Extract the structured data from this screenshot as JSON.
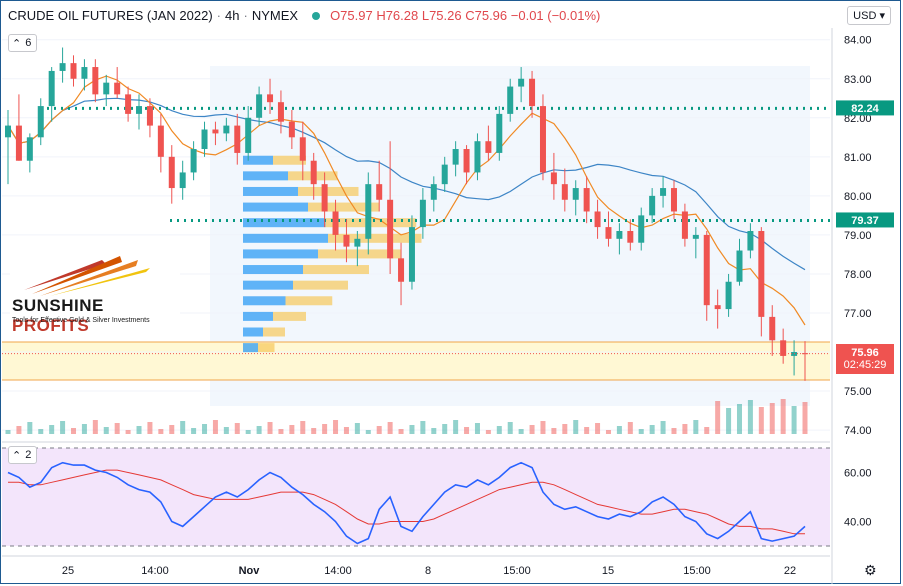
{
  "header": {
    "symbol": "CRUDE OIL FUTURES (JAN 2022)",
    "interval": "4h",
    "exchange": "NYMEX",
    "ohlc": "O75.97 H76.28 L75.26 C75.96 −0.01 (−0.01%)"
  },
  "currency": "USD",
  "main_indicator_count": "6",
  "sub_indicator_count": "2",
  "price_axis": [
    "84.00",
    "83.00",
    "82.00",
    "81.00",
    "80.00",
    "79.00",
    "78.00",
    "77.00",
    "76.00",
    "75.00",
    "74.00"
  ],
  "rsi_axis": [
    "60.00",
    "40.00"
  ],
  "time_axis": [
    "25",
    "14:00",
    "Nov",
    "14:00",
    "8",
    "15:00",
    "15",
    "15:00",
    "22"
  ],
  "tags": {
    "level_high": "82.24",
    "level_mid": "79.37",
    "last_price": "75.96",
    "countdown": "02:45:29"
  },
  "logo": {
    "brand_a": "SUNSHINE ",
    "brand_b": "PROFITS",
    "tagline": "Tools for Effective Gold & Silver Investments"
  },
  "colors": {
    "up": "#26a69a",
    "down": "#ef5350",
    "level": "#089981",
    "last": "#ef5350",
    "rsi": "#2962ff",
    "rsi_ma": "#e53935"
  },
  "chart_data": {
    "type": "candlestick",
    "ylim": [
      73.9,
      84.3
    ],
    "ohlc": [
      [
        81.5,
        82.2,
        80.3,
        81.8
      ],
      [
        81.8,
        82.6,
        80.9,
        80.9
      ],
      [
        80.9,
        81.6,
        80.6,
        81.5
      ],
      [
        81.5,
        82.5,
        81.3,
        82.3
      ],
      [
        82.3,
        83.3,
        81.9,
        83.2
      ],
      [
        83.2,
        83.8,
        82.9,
        83.4
      ],
      [
        83.4,
        83.6,
        82.8,
        83.0
      ],
      [
        83.0,
        83.5,
        82.7,
        83.3
      ],
      [
        83.3,
        83.5,
        82.4,
        82.6
      ],
      [
        82.6,
        83.1,
        82.3,
        82.9
      ],
      [
        82.9,
        83.3,
        82.5,
        82.6
      ],
      [
        82.6,
        82.8,
        81.9,
        82.1
      ],
      [
        82.1,
        82.6,
        81.7,
        82.3
      ],
      [
        82.3,
        82.5,
        81.5,
        81.8
      ],
      [
        81.8,
        82.1,
        80.6,
        81.0
      ],
      [
        81.0,
        81.3,
        79.8,
        80.2
      ],
      [
        80.2,
        80.9,
        79.9,
        80.6
      ],
      [
        80.6,
        81.4,
        80.4,
        81.2
      ],
      [
        81.2,
        81.9,
        81.0,
        81.7
      ],
      [
        81.7,
        81.9,
        81.3,
        81.6
      ],
      [
        81.6,
        82.0,
        81.4,
        81.8
      ],
      [
        81.8,
        82.1,
        80.8,
        81.1
      ],
      [
        81.1,
        82.3,
        80.9,
        82.0
      ],
      [
        82.0,
        82.8,
        81.8,
        82.6
      ],
      [
        82.6,
        83.0,
        82.1,
        82.4
      ],
      [
        82.4,
        82.7,
        81.6,
        81.9
      ],
      [
        81.9,
        82.2,
        81.2,
        81.5
      ],
      [
        81.5,
        81.9,
        80.4,
        80.9
      ],
      [
        80.9,
        81.1,
        79.9,
        80.3
      ],
      [
        80.3,
        80.6,
        79.2,
        79.6
      ],
      [
        79.6,
        79.9,
        78.6,
        79.0
      ],
      [
        79.0,
        79.4,
        78.3,
        78.7
      ],
      [
        78.7,
        79.1,
        78.2,
        78.9
      ],
      [
        78.9,
        80.6,
        78.5,
        80.3
      ],
      [
        80.3,
        80.9,
        79.6,
        79.9
      ],
      [
        79.9,
        81.4,
        78.0,
        78.4
      ],
      [
        78.4,
        78.8,
        77.2,
        77.8
      ],
      [
        77.8,
        79.5,
        77.6,
        79.2
      ],
      [
        79.2,
        80.2,
        78.9,
        79.9
      ],
      [
        79.9,
        80.5,
        79.6,
        80.3
      ],
      [
        80.3,
        81.0,
        80.1,
        80.8
      ],
      [
        80.8,
        81.4,
        80.5,
        81.2
      ],
      [
        81.2,
        81.3,
        80.3,
        80.6
      ],
      [
        80.6,
        81.6,
        80.4,
        81.4
      ],
      [
        81.4,
        81.8,
        80.9,
        81.1
      ],
      [
        81.1,
        82.3,
        80.9,
        82.1
      ],
      [
        82.1,
        83.0,
        81.9,
        82.8
      ],
      [
        82.8,
        83.3,
        82.4,
        83.0
      ],
      [
        83.0,
        83.2,
        82.0,
        82.3
      ],
      [
        82.3,
        82.6,
        80.4,
        80.6
      ],
      [
        80.6,
        81.1,
        79.9,
        80.3
      ],
      [
        80.3,
        80.7,
        79.6,
        79.9
      ],
      [
        79.9,
        80.4,
        79.5,
        80.2
      ],
      [
        80.2,
        80.5,
        79.3,
        79.6
      ],
      [
        79.6,
        79.9,
        78.9,
        79.2
      ],
      [
        79.2,
        79.6,
        78.7,
        78.9
      ],
      [
        78.9,
        79.3,
        78.5,
        79.1
      ],
      [
        79.1,
        79.4,
        78.6,
        78.8
      ],
      [
        78.8,
        79.7,
        78.6,
        79.5
      ],
      [
        79.5,
        80.2,
        79.3,
        80.0
      ],
      [
        80.0,
        80.5,
        79.7,
        80.2
      ],
      [
        80.2,
        80.4,
        79.4,
        79.6
      ],
      [
        79.6,
        79.8,
        78.7,
        78.9
      ],
      [
        78.9,
        79.2,
        78.4,
        79.0
      ],
      [
        79.0,
        79.1,
        76.8,
        77.2
      ],
      [
        77.2,
        77.6,
        76.6,
        77.1
      ],
      [
        77.1,
        78.0,
        76.9,
        77.8
      ],
      [
        77.8,
        78.9,
        77.7,
        78.6
      ],
      [
        78.6,
        79.3,
        78.4,
        79.1
      ],
      [
        79.1,
        79.2,
        76.4,
        76.9
      ],
      [
        76.9,
        77.2,
        75.9,
        76.3
      ],
      [
        76.3,
        76.6,
        75.7,
        75.9
      ],
      [
        75.9,
        76.3,
        75.4,
        76.0
      ],
      [
        75.97,
        76.28,
        75.26,
        75.96
      ]
    ],
    "levels": [
      82.24,
      79.37
    ],
    "last_price": 75.96,
    "rsi_ylim": [
      30,
      70
    ],
    "rsi_levels": [
      70,
      30
    ],
    "rsi": [
      60,
      58,
      54,
      56,
      62,
      64,
      63,
      63,
      61,
      60,
      58,
      55,
      53,
      52,
      48,
      40,
      38,
      42,
      46,
      50,
      52,
      50,
      53,
      57,
      60,
      58,
      54,
      51,
      47,
      44,
      40,
      34,
      31,
      33,
      45,
      50,
      38,
      36,
      42,
      47,
      52,
      55,
      54,
      57,
      55,
      58,
      62,
      64,
      62,
      52,
      47,
      45,
      46,
      44,
      42,
      41,
      43,
      42,
      44,
      48,
      50,
      47,
      42,
      40,
      35,
      33,
      36,
      40,
      44,
      33,
      32,
      33,
      34,
      38
    ],
    "rsi_ma": [
      56,
      56,
      55,
      55,
      56,
      57,
      58,
      59,
      60,
      61,
      61,
      60,
      59,
      58,
      57,
      55,
      53,
      51,
      50,
      49,
      49,
      49,
      49,
      50,
      51,
      52,
      52,
      52,
      51,
      49,
      47,
      44,
      41,
      39,
      39,
      40,
      40,
      40,
      40,
      41,
      43,
      45,
      47,
      49,
      51,
      53,
      54,
      55,
      56,
      56,
      55,
      53,
      51,
      49,
      47,
      46,
      45,
      44,
      43,
      43,
      44,
      45,
      45,
      44,
      43,
      41,
      39,
      38,
      38,
      37,
      37,
      36,
      35,
      35
    ]
  }
}
